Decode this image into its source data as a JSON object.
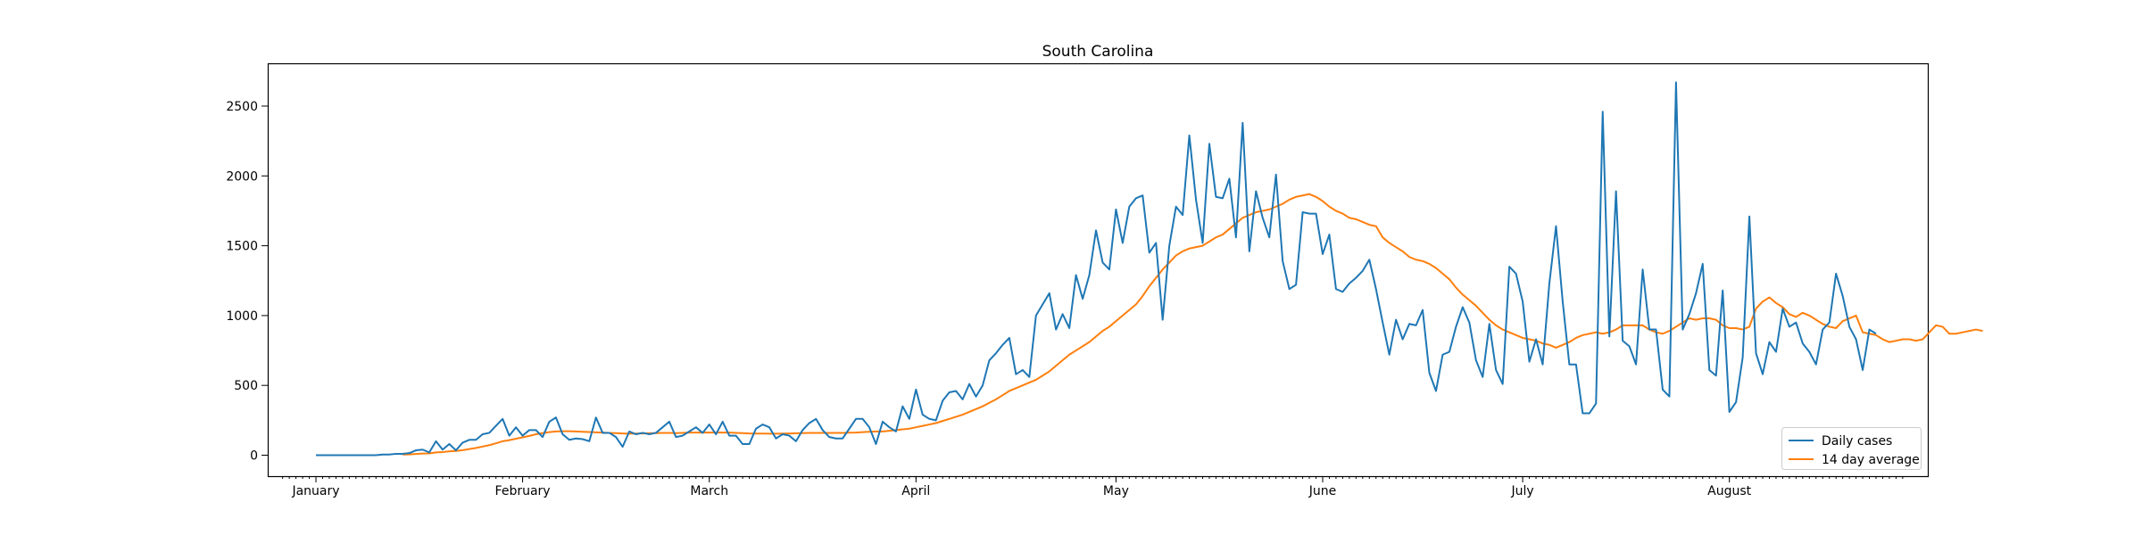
{
  "chart_data": {
    "type": "line",
    "title": "South Carolina",
    "xlabel": "",
    "ylabel": "",
    "x_start": "2021-01-01",
    "x_end": "2021-08-17",
    "x_tick_labels": [
      "January",
      "February",
      "March",
      "April",
      "May",
      "June",
      "July",
      "August"
    ],
    "y_ticks": [
      0,
      500,
      1000,
      1500,
      2000,
      2500
    ],
    "ylim": [
      -150,
      2800
    ],
    "grid": false,
    "legend_position": "lower right",
    "series": [
      {
        "name": "Daily cases",
        "color": "#1f77b4",
        "values": [
          0,
          0,
          0,
          0,
          0,
          0,
          0,
          0,
          0,
          0,
          5,
          5,
          10,
          10,
          15,
          35,
          40,
          20,
          100,
          40,
          80,
          35,
          90,
          110,
          110,
          150,
          160,
          210,
          260,
          140,
          200,
          140,
          180,
          180,
          130,
          240,
          270,
          150,
          110,
          120,
          115,
          100,
          270,
          160,
          160,
          130,
          60,
          170,
          150,
          160,
          150,
          160,
          200,
          240,
          130,
          140,
          170,
          200,
          160,
          220,
          150,
          240,
          140,
          140,
          80,
          80,
          190,
          220,
          200,
          120,
          150,
          140,
          100,
          180,
          230,
          260,
          180,
          130,
          120,
          120,
          190,
          260,
          260,
          200,
          80,
          240,
          200,
          170,
          350,
          260,
          470,
          290,
          260,
          250,
          390,
          450,
          460,
          400,
          510,
          420,
          500,
          680,
          730,
          790,
          840,
          580,
          610,
          560,
          1000,
          1080,
          1160,
          900,
          1010,
          910,
          1290,
          1120,
          1290,
          1610,
          1380,
          1330,
          1760,
          1520,
          1780,
          1840,
          1860,
          1450,
          1520,
          970,
          1500,
          1780,
          1720,
          2290,
          1830,
          1520,
          2230,
          1850,
          1840,
          1980,
          1560,
          2380,
          1460,
          1890,
          1700,
          1560,
          2010,
          1390,
          1190,
          1220,
          1740,
          1730,
          1730,
          1440,
          1580,
          1190,
          1170,
          1230,
          1270,
          1320,
          1400,
          1190,
          950,
          720,
          970,
          830,
          940,
          930,
          1040,
          590,
          460,
          720,
          740,
          920,
          1060,
          950,
          680,
          560,
          940,
          610,
          510,
          1350,
          1300,
          1100,
          670,
          830,
          650,
          1230,
          1640,
          1100,
          650,
          650,
          300,
          300,
          370,
          2460,
          850,
          1890,
          820,
          780,
          650,
          1330,
          900,
          900,
          470,
          420,
          2670,
          900,
          1010,
          1160,
          1370,
          610,
          570,
          1180,
          310,
          380,
          700,
          1710,
          730,
          580,
          810,
          740,
          1050,
          920,
          950,
          800,
          740,
          650,
          900,
          950,
          1300,
          1140,
          920,
          830,
          610,
          900,
          870
        ]
      },
      {
        "name": "14 day average",
        "color": "#ff7f0e",
        "values": [
          null,
          null,
          null,
          null,
          null,
          null,
          null,
          null,
          null,
          null,
          null,
          null,
          null,
          5,
          6,
          9,
          12,
          13,
          20,
          22,
          28,
          30,
          36,
          44,
          52,
          62,
          72,
          85,
          100,
          108,
          118,
          128,
          138,
          150,
          158,
          165,
          170,
          172,
          172,
          170,
          168,
          166,
          164,
          162,
          160,
          158,
          156,
          154,
          155,
          156,
          157,
          158,
          160,
          160,
          158,
          160,
          162,
          162,
          163,
          162,
          162,
          162,
          162,
          160,
          158,
          156,
          155,
          155,
          154,
          154,
          155,
          156,
          157,
          158,
          160,
          160,
          160,
          160,
          160,
          160,
          161,
          162,
          165,
          168,
          170,
          170,
          175,
          180,
          185,
          190,
          200,
          210,
          220,
          230,
          245,
          260,
          275,
          290,
          310,
          330,
          350,
          375,
          400,
          430,
          460,
          480,
          500,
          520,
          540,
          570,
          600,
          640,
          680,
          720,
          750,
          780,
          810,
          850,
          890,
          920,
          960,
          1000,
          1040,
          1080,
          1140,
          1210,
          1270,
          1330,
          1380,
          1430,
          1460,
          1480,
          1490,
          1500,
          1530,
          1560,
          1580,
          1620,
          1660,
          1700,
          1720,
          1740,
          1750,
          1760,
          1780,
          1800,
          1830,
          1850,
          1860,
          1870,
          1850,
          1820,
          1780,
          1750,
          1730,
          1700,
          1690,
          1670,
          1650,
          1640,
          1560,
          1520,
          1490,
          1460,
          1420,
          1400,
          1390,
          1370,
          1340,
          1300,
          1260,
          1200,
          1150,
          1110,
          1070,
          1020,
          970,
          930,
          900,
          880,
          860,
          840,
          830,
          820,
          800,
          790,
          770,
          790,
          810,
          840,
          860,
          870,
          880,
          870,
          880,
          900,
          930,
          930,
          930,
          930,
          900,
          880,
          870,
          890,
          920,
          950,
          980,
          970,
          980,
          980,
          970,
          930,
          910,
          910,
          900,
          920,
          1050,
          1100,
          1130,
          1090,
          1060,
          1010,
          990,
          1020,
          1000,
          970,
          940,
          920,
          910,
          960,
          980,
          1000,
          880,
          870,
          860,
          830,
          810,
          820,
          830,
          830,
          820,
          830,
          880,
          930,
          920,
          870,
          870,
          880,
          890,
          900,
          890
        ]
      }
    ]
  }
}
